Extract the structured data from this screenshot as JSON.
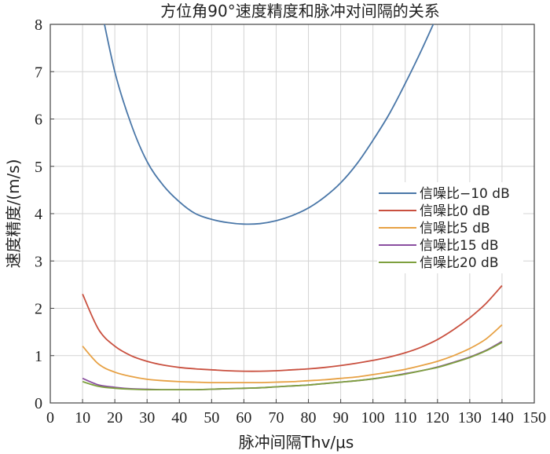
{
  "chart_data": {
    "type": "line",
    "title": "方位角90°速度精度和脉冲对间隔的关系",
    "xlabel": "脉冲间隔Thv/μs",
    "ylabel": "速度精度/(m/s)",
    "xlim": [
      0,
      150
    ],
    "ylim": [
      0,
      8
    ],
    "xticks": [
      0,
      10,
      20,
      30,
      40,
      50,
      60,
      70,
      80,
      90,
      100,
      110,
      120,
      130,
      140,
      150
    ],
    "yticks": [
      0,
      1,
      2,
      3,
      4,
      5,
      6,
      7,
      8
    ],
    "grid": true,
    "legend_position": "right",
    "x": [
      10,
      15,
      20,
      25,
      30,
      35,
      40,
      45,
      50,
      55,
      60,
      65,
      70,
      75,
      80,
      85,
      90,
      95,
      100,
      105,
      110,
      115,
      120,
      125,
      130,
      135,
      140
    ],
    "series": [
      {
        "name": "信噪比−10 dB",
        "color": "#4a77a8",
        "values": [
          null,
          8.6,
          7.0,
          5.9,
          5.1,
          4.6,
          4.25,
          4.0,
          3.88,
          3.81,
          3.78,
          3.79,
          3.85,
          3.96,
          4.12,
          4.35,
          4.65,
          5.05,
          5.55,
          6.1,
          6.75,
          7.45,
          8.2,
          null,
          null,
          null,
          null
        ]
      },
      {
        "name": "信噪比0 dB",
        "color": "#c9503f",
        "values": [
          2.3,
          1.55,
          1.2,
          1.0,
          0.88,
          0.8,
          0.75,
          0.72,
          0.7,
          0.68,
          0.67,
          0.67,
          0.68,
          0.7,
          0.72,
          0.75,
          0.79,
          0.84,
          0.9,
          0.97,
          1.06,
          1.18,
          1.34,
          1.55,
          1.8,
          2.1,
          2.48
        ]
      },
      {
        "name": "信噪比5 dB",
        "color": "#e7a144",
        "values": [
          1.2,
          0.82,
          0.65,
          0.56,
          0.5,
          0.47,
          0.45,
          0.44,
          0.43,
          0.43,
          0.43,
          0.43,
          0.44,
          0.45,
          0.47,
          0.49,
          0.52,
          0.55,
          0.6,
          0.65,
          0.71,
          0.79,
          0.88,
          1.0,
          1.15,
          1.35,
          1.65
        ]
      },
      {
        "name": "信噪比15 dB",
        "color": "#8a4fa0",
        "values": [
          0.52,
          0.38,
          0.33,
          0.3,
          0.29,
          0.28,
          0.28,
          0.28,
          0.29,
          0.3,
          0.31,
          0.32,
          0.34,
          0.36,
          0.38,
          0.41,
          0.44,
          0.47,
          0.51,
          0.56,
          0.62,
          0.68,
          0.76,
          0.86,
          0.97,
          1.11,
          1.3
        ]
      },
      {
        "name": "信噪比20 dB",
        "color": "#7ea03e",
        "values": [
          0.45,
          0.35,
          0.31,
          0.29,
          0.28,
          0.28,
          0.28,
          0.28,
          0.29,
          0.3,
          0.31,
          0.32,
          0.34,
          0.36,
          0.38,
          0.41,
          0.44,
          0.47,
          0.51,
          0.56,
          0.61,
          0.68,
          0.75,
          0.85,
          0.96,
          1.1,
          1.28
        ]
      }
    ]
  }
}
